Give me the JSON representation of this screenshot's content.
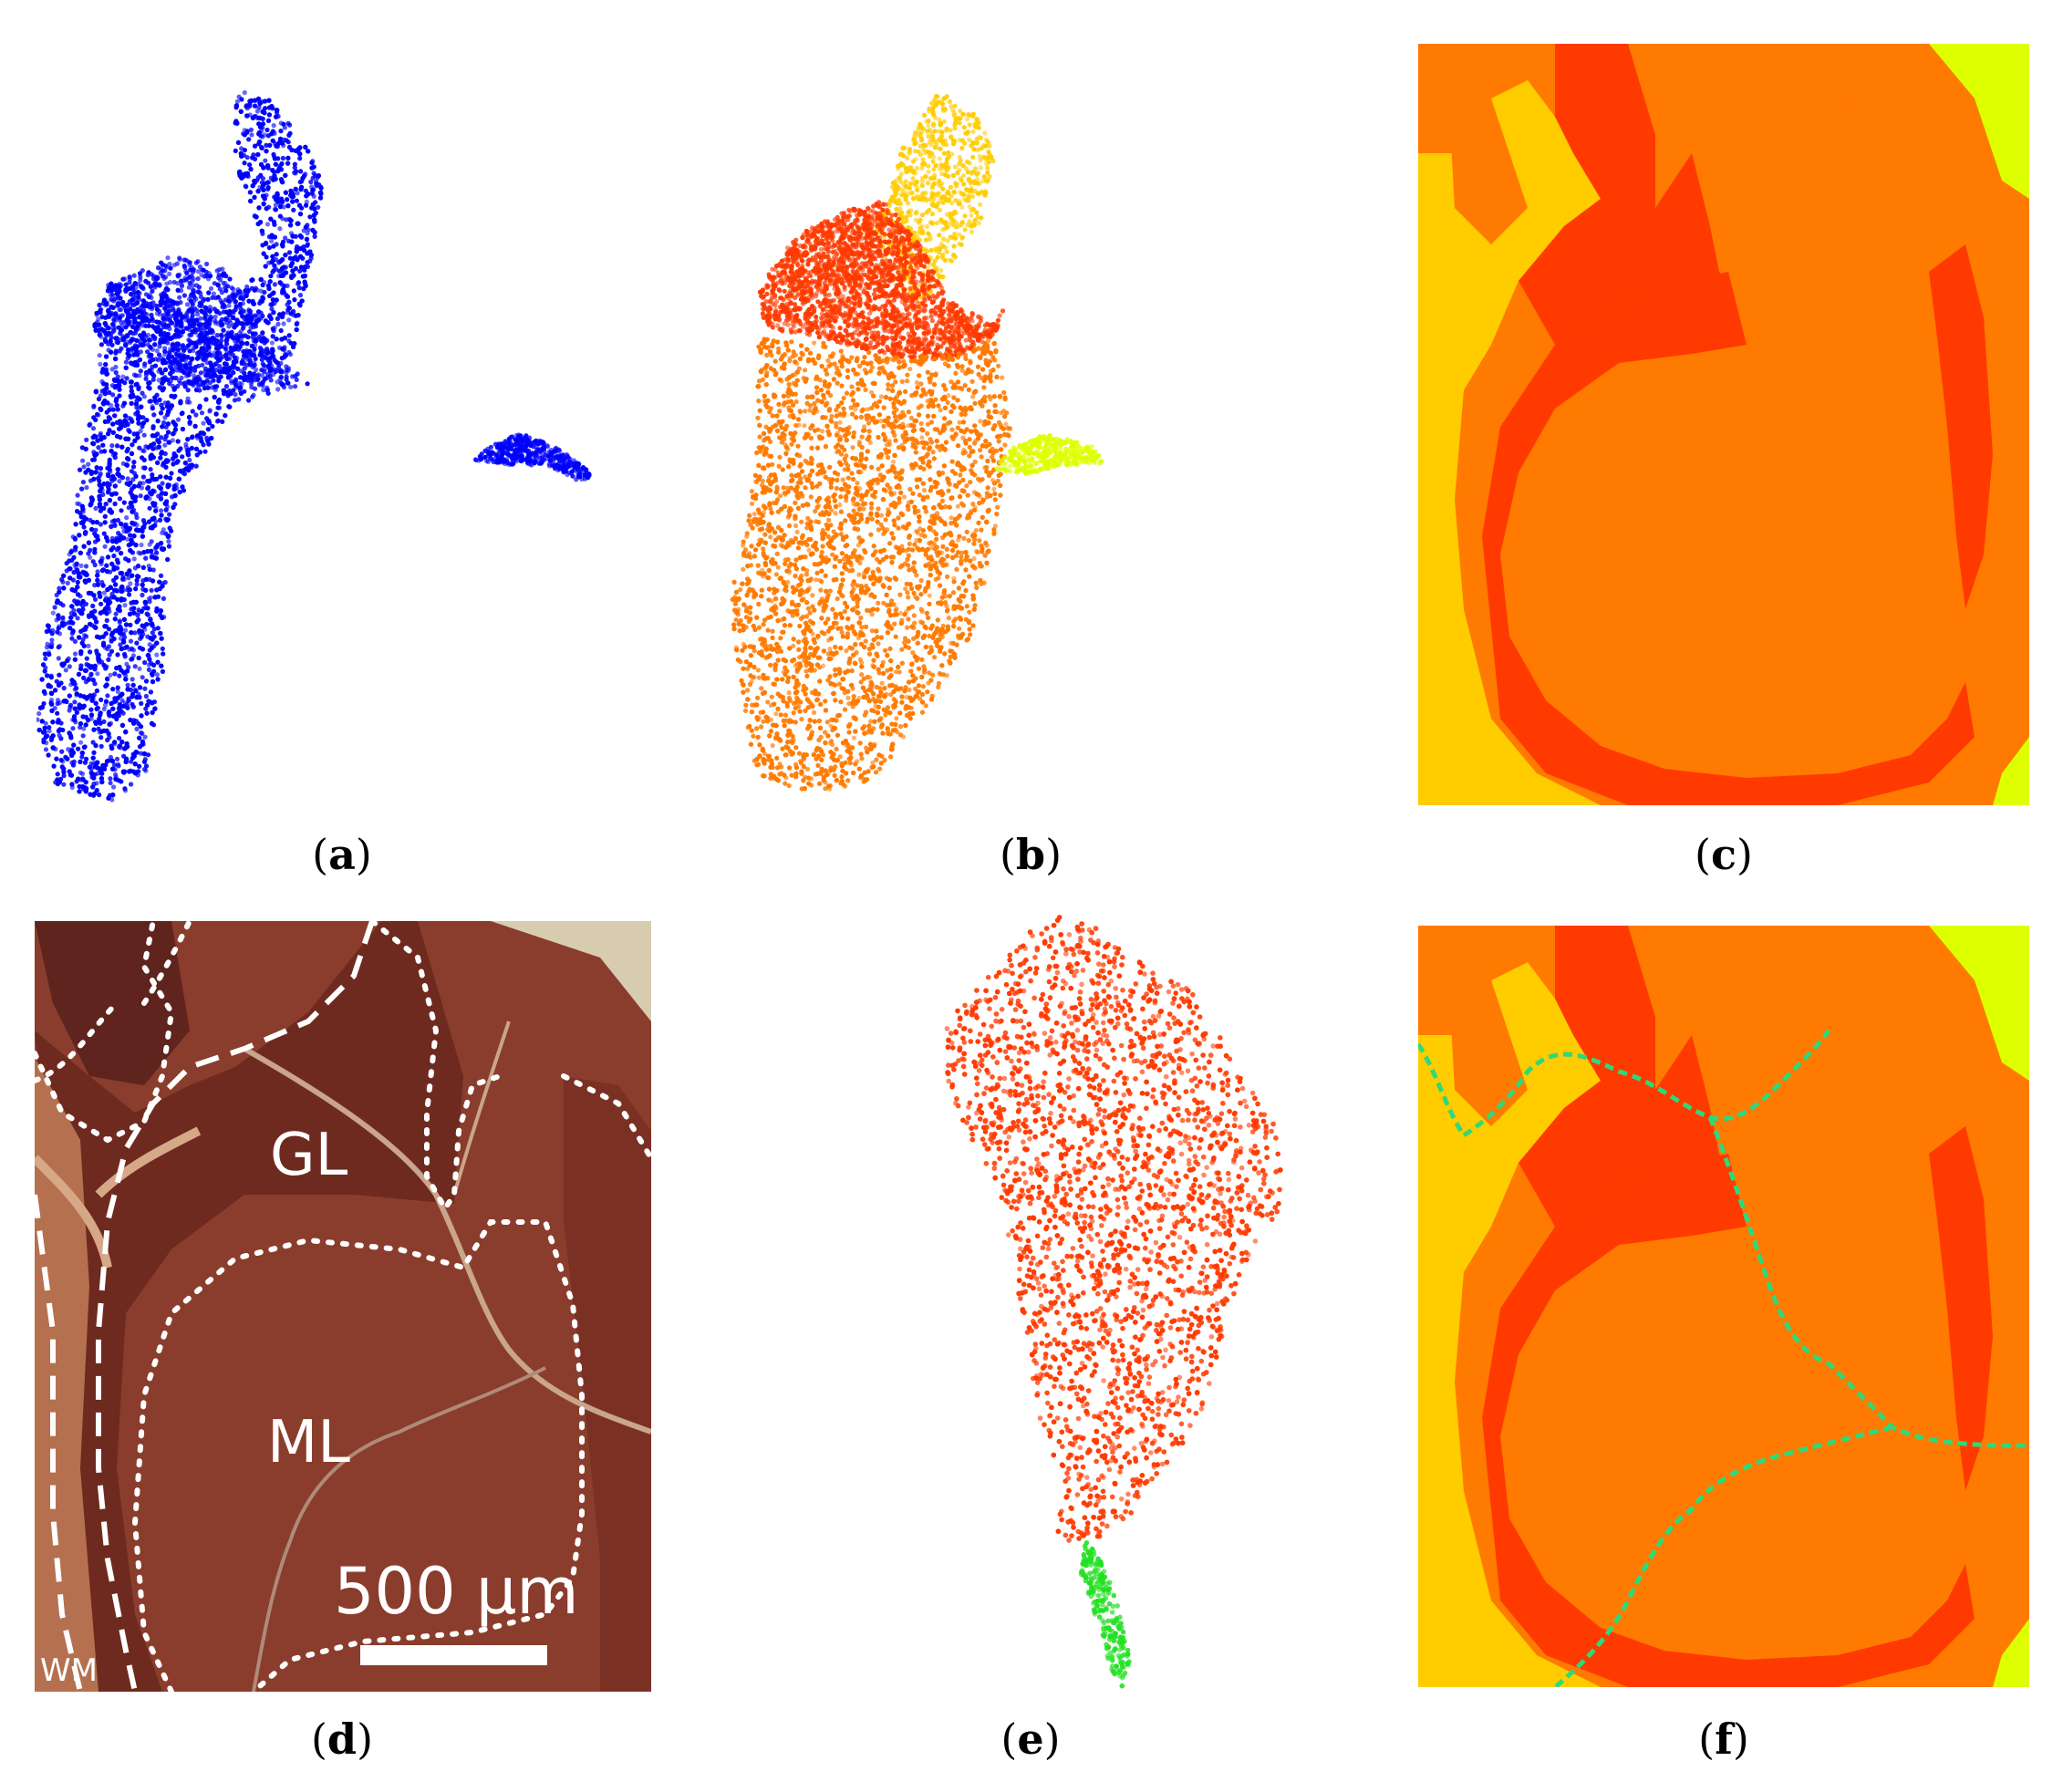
{
  "figure": {
    "panels": [
      {
        "id": "a",
        "caption_letter": "a"
      },
      {
        "id": "b",
        "caption_letter": "b"
      },
      {
        "id": "c",
        "caption_letter": "c"
      },
      {
        "id": "d",
        "caption_letter": "d"
      },
      {
        "id": "e",
        "caption_letter": "e"
      },
      {
        "id": "f",
        "caption_letter": "f"
      }
    ]
  },
  "micrograph": {
    "region_labels": {
      "granular": "GL",
      "molecular": "ML",
      "white_matter": "WM"
    },
    "scale_bar_label": "500 µm"
  },
  "colors": {
    "blue": "#0000ff",
    "red_cluster": "#ff3a00",
    "orange_cluster": "#ff7a00",
    "gold_cluster": "#ffcc00",
    "lime_cluster": "#ddff00",
    "green_cluster": "#22e022",
    "vessel_line": "#2fd97a",
    "tissue_brown": "#8a3d2c"
  }
}
